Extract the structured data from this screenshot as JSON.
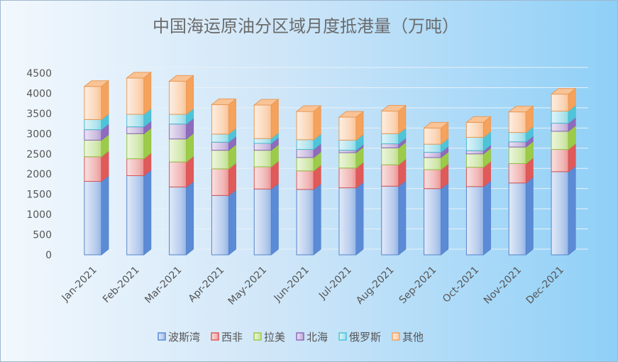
{
  "chart_data": {
    "type": "bar",
    "stacked": true,
    "three_d": true,
    "title": "中国海运原油分区域月度抵港量（万吨）",
    "xlabel": "",
    "ylabel": "",
    "ylim": [
      0,
      4500
    ],
    "yticks": [
      0,
      500,
      1000,
      1500,
      2000,
      2500,
      3000,
      3500,
      4000,
      4500
    ],
    "grid": true,
    "legend_position": "bottom",
    "categories": [
      "Jan-2021",
      "Feb-2021",
      "Mar-2021",
      "Apr-2021",
      "May-2021",
      "Jun-2021",
      "Jul-2021",
      "Aug-2021",
      "Sep-2021",
      "Oct-2021",
      "Nov-2021",
      "Dec-2021"
    ],
    "series": [
      {
        "name": "波斯湾",
        "color": "#5b8bd6",
        "values": [
          1820,
          1960,
          1680,
          1470,
          1630,
          1620,
          1660,
          1700,
          1640,
          1690,
          1780,
          2060
        ]
      },
      {
        "name": "西非",
        "color": "#e05a5a",
        "values": [
          610,
          420,
          620,
          660,
          550,
          460,
          490,
          530,
          470,
          480,
          480,
          550
        ]
      },
      {
        "name": "拉美",
        "color": "#9ccb4a",
        "values": [
          410,
          620,
          570,
          460,
          410,
          330,
          380,
          420,
          300,
          330,
          410,
          450
        ]
      },
      {
        "name": "北海",
        "color": "#8e6bbd",
        "values": [
          260,
          170,
          370,
          200,
          170,
          200,
          60,
          100,
          130,
          80,
          130,
          200
        ]
      },
      {
        "name": "俄罗斯",
        "color": "#4fc4d9",
        "values": [
          250,
          310,
          240,
          200,
          120,
          240,
          250,
          250,
          200,
          330,
          230,
          300
        ]
      },
      {
        "name": "其他",
        "color": "#f5a25c",
        "values": [
          820,
          900,
          820,
          730,
          830,
          700,
          570,
          560,
          400,
          370,
          510,
          420
        ]
      }
    ]
  }
}
